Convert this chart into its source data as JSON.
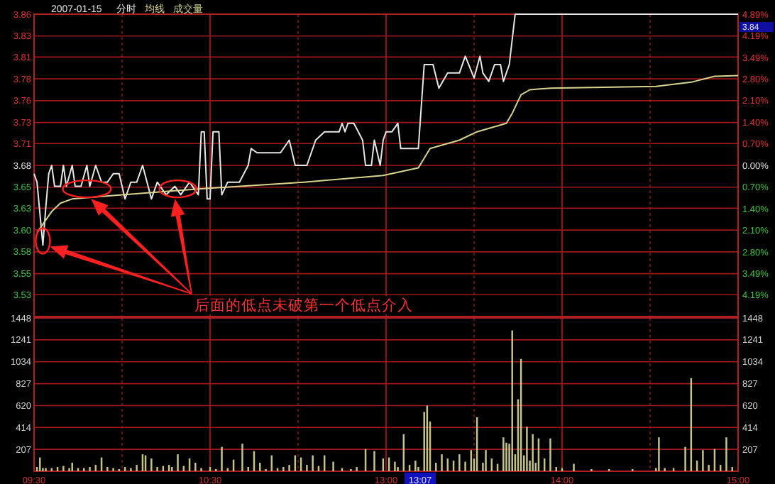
{
  "chart_data": [
    {
      "type": "line",
      "title": "2007-01-15",
      "legend": "top left",
      "grid": true,
      "tick_labels": "y",
      "categories": [
        null,
        null,
        null,
        null,
        null,
        null,
        null,
        null,
        null,
        null,
        null,
        null,
        null,
        null,
        null,
        null,
        null,
        null,
        null,
        null,
        null,
        null,
        null,
        null,
        null,
        null,
        null,
        null,
        null,
        null,
        null,
        null,
        null,
        null,
        null,
        null,
        null,
        null,
        null,
        null,
        null,
        null,
        null,
        null,
        null,
        null,
        null,
        null,
        null,
        null,
        null,
        null,
        null,
        null,
        null,
        null,
        null,
        null,
        null,
        null,
        null,
        null,
        null,
        null,
        null,
        null,
        null,
        null,
        null,
        null,
        null,
        null,
        null,
        null,
        null,
        null,
        null,
        null,
        null,
        null,
        null,
        null,
        null,
        null,
        null,
        null,
        null,
        null,
        null,
        null,
        null,
        null,
        null,
        null,
        null,
        null,
        null,
        null,
        null,
        null,
        null,
        null,
        null,
        null,
        null,
        null,
        null,
        null,
        null,
        null,
        null,
        null,
        null,
        null,
        null,
        null,
        null,
        null,
        null,
        null,
        null,
        null,
        null,
        null,
        null,
        null,
        null,
        null,
        null,
        null,
        null,
        null,
        null,
        null,
        null,
        null,
        null,
        null,
        null,
        null,
        null,
        null,
        null,
        null,
        null,
        null,
        null,
        null,
        null,
        null,
        null,
        null,
        null,
        null,
        null,
        null,
        null,
        null,
        null,
        null,
        null,
        null,
        null,
        null,
        null,
        null,
        null,
        null,
        null,
        null,
        null,
        null,
        null,
        null,
        null,
        null,
        null,
        null,
        null,
        null,
        null,
        null,
        null,
        null,
        null,
        null,
        null,
        null,
        null,
        null,
        null,
        null,
        null,
        null,
        null,
        null,
        null,
        null,
        null,
        null,
        null,
        null,
        null,
        null,
        null,
        null,
        null,
        null,
        null,
        null,
        null,
        null,
        null,
        null,
        null,
        null,
        null,
        null,
        null,
        null,
        null,
        null,
        null,
        null,
        null,
        null,
        null,
        null,
        null,
        null,
        null,
        null,
        null,
        null,
        null,
        null,
        null,
        null,
        null,
        null,
        null
      ],
      "ylim": [
        3.5,
        3.86
      ],
      "yticks": [
        {
          "value": 3.86,
          "label": "3.86"
        },
        {
          "value": 3.834,
          "label": "3.83"
        },
        {
          "value": 3.809,
          "label": "3.81"
        },
        {
          "value": 3.783,
          "label": "3.78"
        },
        {
          "value": 3.757,
          "label": "3.76"
        },
        {
          "value": 3.731,
          "label": "3.73"
        },
        {
          "value": 3.706,
          "label": "3.71"
        },
        {
          "value": 3.68,
          "label": "3.68"
        },
        {
          "value": 3.654,
          "label": "3.65"
        },
        {
          "value": 3.629,
          "label": "3.63"
        },
        {
          "value": 3.603,
          "label": "3.60"
        },
        {
          "value": 3.577,
          "label": "3.58"
        },
        {
          "value": 3.551,
          "label": "3.55"
        },
        {
          "value": 3.526,
          "label": "3.53"
        }
      ],
      "y2lim": [
        -4.89,
        4.89
      ],
      "y2ticks": [
        {
          "value": 4.89,
          "label": "4.89%"
        },
        {
          "value": 4.19,
          "label": "4.19%"
        },
        {
          "value": 3.49,
          "label": "3.49%"
        },
        {
          "value": 2.8,
          "label": "2.80%"
        },
        {
          "value": 2.1,
          "label": "2.10%"
        },
        {
          "value": 1.4,
          "label": "1.40%"
        },
        {
          "value": 0.7,
          "label": "0.70%"
        },
        {
          "value": 0,
          "label": "0.00%"
        },
        {
          "value": -0.7,
          "label": "0.70%"
        },
        {
          "value": -1.4,
          "label": "1.40%"
        },
        {
          "value": -2.1,
          "label": "2.10%"
        },
        {
          "value": -2.8,
          "label": "2.80%"
        },
        {
          "value": -3.49,
          "label": "3.49%"
        },
        {
          "value": -4.19,
          "label": "4.19%"
        }
      ],
      "annotations": [
        "后面的低点未破第一个低点介入",
        "3.84"
      ],
      "series": [
        {
          "name": "分时",
          "color": "#e6e6e6",
          "values": [
            3.67,
            3.66,
            null,
            3.585,
            3.63,
            3.67,
            3.68,
            3.655,
            null,
            3.655,
            3.68,
            3.655,
            null,
            3.68,
            3.655,
            null,
            3.655,
            null,
            3.68,
            3.655,
            null,
            3.68,
            null,
            3.66,
            null,
            3.66,
            null,
            3.67,
            null,
            3.67,
            null,
            3.64,
            null,
            3.66,
            null,
            3.66,
            null,
            3.68,
            null,
            null,
            3.64,
            null,
            3.66,
            null,
            null,
            3.645,
            null,
            null,
            3.655,
            null,
            3.645,
            null,
            null,
            3.66,
            null,
            null,
            3.645,
            3.72,
            3.72,
            3.64,
            3.64,
            3.72,
            null,
            3.72,
            3.645,
            null,
            3.66,
            null,
            null,
            null,
            3.66,
            null,
            null,
            3.68,
            3.7,
            null,
            3.695,
            null,
            null,
            null,
            null,
            null,
            null,
            null,
            3.695,
            null,
            null,
            3.71,
            null,
            3.68,
            null,
            null,
            null,
            3.68,
            null,
            null,
            3.71,
            null,
            null,
            3.72,
            null,
            null,
            null,
            null,
            3.72,
            3.73,
            3.72,
            3.73,
            null,
            3.73,
            null,
            null,
            3.71,
            3.68,
            null,
            3.68,
            3.71,
            null,
            3.68,
            3.71,
            3.72,
            null,
            3.72,
            null,
            3.73,
            3.7,
            null,
            null,
            null,
            null,
            null,
            3.7,
            null,
            3.8,
            null,
            null,
            3.8,
            null,
            3.772,
            null,
            null,
            3.79,
            null,
            null,
            null,
            3.79,
            null,
            3.81,
            null,
            null,
            3.784,
            null,
            3.81,
            3.79,
            null,
            3.78,
            null,
            3.8,
            null,
            3.8,
            3.78,
            null,
            3.8,
            null,
            3.86,
            null,
            null,
            null,
            null,
            null,
            3.86,
            null,
            null,
            null,
            null,
            null,
            null,
            null,
            null,
            null,
            3.86,
            null,
            null,
            null,
            null,
            null,
            null,
            null,
            null,
            null,
            3.86,
            null,
            null,
            null,
            null,
            null,
            null,
            null,
            null,
            null,
            3.86,
            null,
            null,
            null,
            null,
            null,
            null,
            null,
            null,
            null,
            3.86,
            null,
            null,
            null,
            null,
            null,
            null,
            null,
            null,
            null,
            3.86,
            null,
            null,
            null,
            null,
            null,
            null,
            null,
            null,
            null,
            3.86,
            null,
            null,
            null,
            null,
            null,
            null,
            null,
            null,
            null,
            3.86
          ]
        },
        {
          "name": "均线",
          "color": "#d8d48c",
          "values": [
            null,
            3.6,
            null,
            3.61,
            null,
            null,
            3.625,
            null,
            null,
            3.635,
            null,
            null,
            null,
            3.64,
            null,
            null,
            null,
            null,
            null,
            null,
            null,
            null,
            null,
            null,
            null,
            null,
            null,
            3.644,
            null,
            null,
            null,
            null,
            null,
            null,
            null,
            null,
            null,
            null,
            null,
            null,
            null,
            null,
            null,
            null,
            null,
            null,
            null,
            null,
            null,
            null,
            null,
            null,
            null,
            null,
            null,
            null,
            3.652,
            null,
            null,
            null,
            null,
            null,
            null,
            null,
            null,
            null,
            null,
            null,
            null,
            null,
            null,
            null,
            null,
            null,
            null,
            null,
            null,
            null,
            null,
            null,
            null,
            null,
            null,
            null,
            null,
            null,
            null,
            null,
            null,
            null,
            null,
            null,
            3.66,
            null,
            null,
            null,
            null,
            null,
            null,
            null,
            null,
            null,
            null,
            null,
            null,
            null,
            null,
            null,
            null,
            null,
            null,
            null,
            null,
            null,
            null,
            null,
            null,
            null,
            null,
            3.668,
            null,
            null,
            null,
            null,
            null,
            null,
            null,
            null,
            null,
            null,
            null,
            3.677,
            null,
            null,
            null,
            3.7,
            null,
            null,
            null,
            null,
            null,
            null,
            null,
            null,
            null,
            3.71,
            null,
            null,
            null,
            null,
            null,
            3.72,
            null,
            null,
            null,
            null,
            null,
            null,
            null,
            null,
            null,
            3.73,
            null,
            3.742,
            null,
            null,
            3.764,
            null,
            null,
            3.77,
            null,
            null,
            null,
            null,
            null,
            null,
            3.772,
            null,
            null,
            null,
            null,
            null,
            null,
            null,
            null,
            null,
            null,
            null,
            null,
            null,
            null,
            null,
            null,
            null,
            null,
            null,
            null,
            null,
            null,
            null,
            null,
            null,
            null,
            null,
            null,
            null,
            null,
            null,
            null,
            null,
            null,
            null,
            3.774,
            null,
            null,
            null,
            null,
            null,
            null,
            null,
            null,
            null,
            null,
            null,
            3.779,
            null,
            null,
            null,
            null,
            null,
            null,
            null,
            3.786,
            null,
            null,
            null,
            null,
            null,
            null,
            null,
            3.787
          ]
        }
      ]
    },
    {
      "type": "bar",
      "legend": "top left",
      "grid": true,
      "categories": [
        "09:30",
        null,
        null,
        null,
        null,
        null,
        null,
        null,
        null,
        null,
        null,
        null,
        null,
        null,
        null,
        null,
        null,
        null,
        null,
        null,
        null,
        null,
        null,
        null,
        null,
        null,
        null,
        null,
        null,
        null,
        null,
        null,
        null,
        null,
        null,
        null,
        null,
        null,
        null,
        null,
        null,
        null,
        null,
        null,
        null,
        null,
        null,
        null,
        null,
        null,
        null,
        null,
        null,
        null,
        null,
        null,
        null,
        null,
        null,
        null,
        "10:30",
        null,
        null,
        null,
        null,
        null,
        null,
        null,
        null,
        null,
        null,
        null,
        null,
        null,
        null,
        null,
        null,
        null,
        null,
        null,
        null,
        null,
        null,
        null,
        null,
        null,
        null,
        null,
        null,
        null,
        null,
        null,
        null,
        null,
        null,
        null,
        null,
        null,
        null,
        null,
        null,
        null,
        null,
        null,
        null,
        null,
        null,
        null,
        null,
        null,
        null,
        null,
        null,
        null,
        null,
        null,
        null,
        null,
        null,
        null,
        "13:00",
        null,
        null,
        null,
        null,
        null,
        null,
        null,
        null,
        null,
        null,
        null,
        null,
        null,
        null,
        null,
        null,
        null,
        null,
        null,
        null,
        null,
        null,
        null,
        null,
        null,
        null,
        null,
        null,
        null,
        null,
        null,
        null,
        null,
        null,
        null,
        null,
        null,
        null,
        null,
        null,
        null,
        null,
        null,
        null,
        null,
        null,
        null,
        null,
        null,
        null,
        null,
        null,
        null,
        null,
        null,
        null,
        null,
        null,
        null,
        "14:00",
        null,
        null,
        null,
        null,
        null,
        null,
        null,
        null,
        null,
        null,
        null,
        null,
        null,
        null,
        null,
        null,
        null,
        null,
        null,
        null,
        null,
        null,
        null,
        null,
        null,
        null,
        null,
        null,
        null,
        null,
        null,
        null,
        null,
        null,
        null,
        null,
        null,
        null,
        null,
        null,
        null,
        null,
        null,
        null,
        null,
        null,
        null,
        null,
        null,
        null,
        null,
        null,
        null,
        null,
        null,
        null,
        null,
        null,
        null,
        "15:00"
      ],
      "ylim": [
        0,
        1448
      ],
      "yticks": [
        207,
        414,
        620,
        827,
        1034,
        1241,
        1448
      ],
      "y2lim": [
        0,
        1448
      ],
      "y2ticks": [
        207,
        414,
        620,
        827,
        1034,
        1241,
        1448
      ],
      "annotations": [
        "13:07"
      ],
      "series": [
        {
          "name": "成交量",
          "color": "#c4c488",
          "values": [
            null,
            40,
            130,
            30,
            30,
            null,
            30,
            null,
            40,
            null,
            50,
            null,
            30,
            80,
            null,
            30,
            null,
            30,
            null,
            40,
            null,
            60,
            null,
            130,
            null,
            40,
            null,
            30,
            null,
            20,
            null,
            40,
            null,
            30,
            null,
            60,
            null,
            160,
            150,
            null,
            120,
            null,
            40,
            null,
            50,
            null,
            60,
            40,
            null,
            160,
            null,
            50,
            null,
            120,
            null,
            80,
            null,
            30,
            null,
            null,
            40,
            null,
            20,
            null,
            230,
            null,
            30,
            null,
            110,
            null,
            null,
            260,
            null,
            40,
            null,
            190,
            null,
            80,
            null,
            20,
            null,
            150,
            null,
            30,
            null,
            40,
            null,
            60,
            null,
            150,
            null,
            130,
            null,
            60,
            null,
            150,
            null,
            50,
            null,
            150,
            null,
            null,
            90,
            null,
            null,
            30,
            null,
            null,
            20,
            null,
            40,
            null,
            null,
            210,
            null,
            null,
            190,
            null,
            null,
            120,
            null,
            130,
            null,
            90,
            40,
            null,
            350,
            null,
            60,
            null,
            100,
            40,
            null,
            560,
            620,
            470,
            null,
            80,
            null,
            160,
            null,
            120,
            null,
            100,
            null,
            160,
            null,
            90,
            null,
            200,
            120,
            510,
            null,
            80,
            200,
            null,
            120,
            null,
            70,
            null,
            320,
            270,
            260,
            1330,
            160,
            680,
            1060,
            150,
            420,
            100,
            350,
            80,
            310,
            null,
            120,
            null,
            310,
            null,
            40,
            null,
            30,
            null,
            null,
            null,
            70,
            null,
            null,
            null,
            null,
            null,
            20,
            null,
            null,
            null,
            null,
            null,
            20,
            null,
            null,
            null,
            null,
            null,
            null,
            null,
            20,
            null,
            null,
            null,
            null,
            null,
            null,
            null,
            30,
            320,
            null,
            30,
            null,
            null,
            30,
            null,
            null,
            null,
            230,
            null,
            880,
            null,
            100,
            null,
            200,
            null,
            60,
            null,
            210,
            null,
            60,
            null,
            320,
            null,
            40,
            null,
            null
          ]
        }
      ]
    }
  ]
}
